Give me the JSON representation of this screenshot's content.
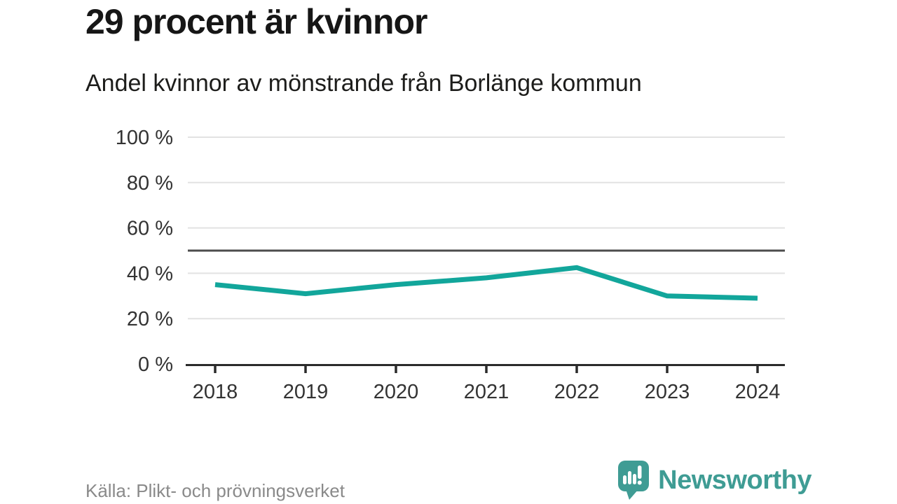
{
  "header": {
    "title": "29 procent är kvinnor",
    "subtitle": "Andel kvinnor av mönstrande från Borlänge kommun"
  },
  "footer": {
    "source": "Källa: Plikt- och prövningsverket",
    "brand": "Newsworthy"
  },
  "chart_data": {
    "type": "line",
    "title": "29 procent är kvinnor",
    "subtitle": "Andel kvinnor av mönstrande från Borlänge kommun",
    "x": [
      "2018",
      "2019",
      "2020",
      "2021",
      "2022",
      "2023",
      "2024"
    ],
    "series": [
      {
        "name": "Andel kvinnor av mönstrande",
        "values": [
          35,
          31,
          35,
          38,
          42.5,
          30,
          29
        ]
      }
    ],
    "xlabel": "",
    "ylabel": "",
    "ylim": [
      0,
      100
    ],
    "yticks": [
      0,
      20,
      40,
      60,
      80,
      100
    ],
    "ytick_suffix": " %",
    "reference_line": 50,
    "grid": true,
    "legend_position": "none"
  },
  "colors": {
    "line": "#12a69b",
    "grid": "#e2e2e2",
    "reference_line": "#4d4d4d",
    "axis": "#2a2a2a",
    "tick_label": "#333333",
    "brand": "#3f9c94"
  }
}
